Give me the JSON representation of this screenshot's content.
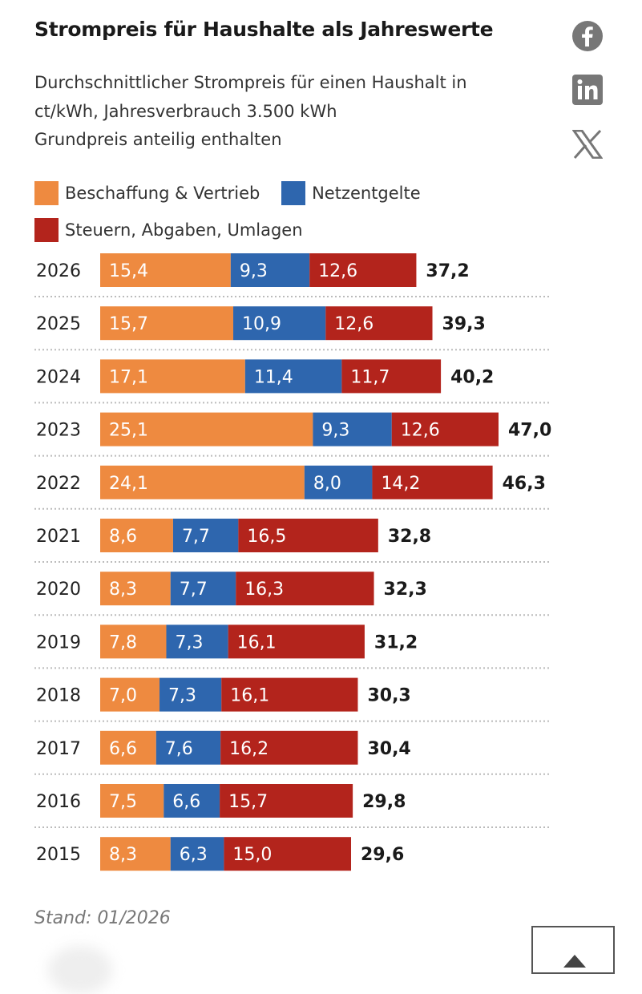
{
  "header": {
    "title": "Strompreis für Haushalte als Jahreswerte",
    "subtitle_lines": [
      "Durchschnittlicher Strompreis für einen Haushalt in",
      "ct/kWh, Jahresverbrauch 3.500 kWh",
      "Grundpreis anteilig enthalten"
    ]
  },
  "social": [
    {
      "icon": "facebook-icon"
    },
    {
      "icon": "linkedin-icon"
    },
    {
      "icon": "x-icon"
    }
  ],
  "chart_data": {
    "type": "bar",
    "orientation": "horizontal-stacked",
    "title": "Strompreis für Haushalte als Jahreswerte",
    "categories": [
      "2026",
      "2025",
      "2024",
      "2023",
      "2022",
      "2021",
      "2020",
      "2019",
      "2018",
      "2017",
      "2016",
      "2015"
    ],
    "series": [
      {
        "name": "Beschaffung & Vertrieb",
        "color": "#EE8A40",
        "values": [
          15.4,
          15.7,
          17.1,
          25.1,
          24.1,
          8.6,
          8.3,
          7.8,
          7.0,
          6.6,
          7.5,
          8.3
        ],
        "labels": [
          "15,4",
          "15,7",
          "17,1",
          "25,1",
          "24,1",
          "8,6",
          "8,3",
          "7,8",
          "7,0",
          "6,6",
          "7,5",
          "8,3"
        ]
      },
      {
        "name": "Netzentgelte",
        "color": "#2E66AE",
        "values": [
          9.3,
          10.9,
          11.4,
          9.3,
          8.0,
          7.7,
          7.7,
          7.3,
          7.3,
          7.6,
          6.6,
          6.3
        ],
        "labels": [
          "9,3",
          "10,9",
          "11,4",
          "9,3",
          "8,0",
          "7,7",
          "7,7",
          "7,3",
          "7,3",
          "7,6",
          "6,6",
          "6,3"
        ]
      },
      {
        "name": "Steuern, Abgaben, Umlagen",
        "color": "#B3241C",
        "values": [
          12.6,
          12.6,
          11.7,
          12.6,
          14.2,
          16.5,
          16.3,
          16.1,
          16.1,
          16.2,
          15.7,
          15.0
        ],
        "labels": [
          "12,6",
          "12,6",
          "11,7",
          "12,6",
          "14,2",
          "16,5",
          "16,3",
          "16,1",
          "16,1",
          "16,2",
          "15,7",
          "15,0"
        ]
      }
    ],
    "totals": [
      37.2,
      39.3,
      40.2,
      47.0,
      46.3,
      32.8,
      32.3,
      31.2,
      30.3,
      30.4,
      29.8,
      29.6
    ],
    "total_labels": [
      "37,2",
      "39,3",
      "40,2",
      "47,0",
      "46,3",
      "32,8",
      "32,3",
      "31,2",
      "30,3",
      "30,4",
      "29,8",
      "29,6"
    ],
    "legend_position": "top",
    "grid": false,
    "xlim": [
      0,
      47
    ]
  },
  "footer": {
    "stand": "Stand: 01/2026"
  }
}
